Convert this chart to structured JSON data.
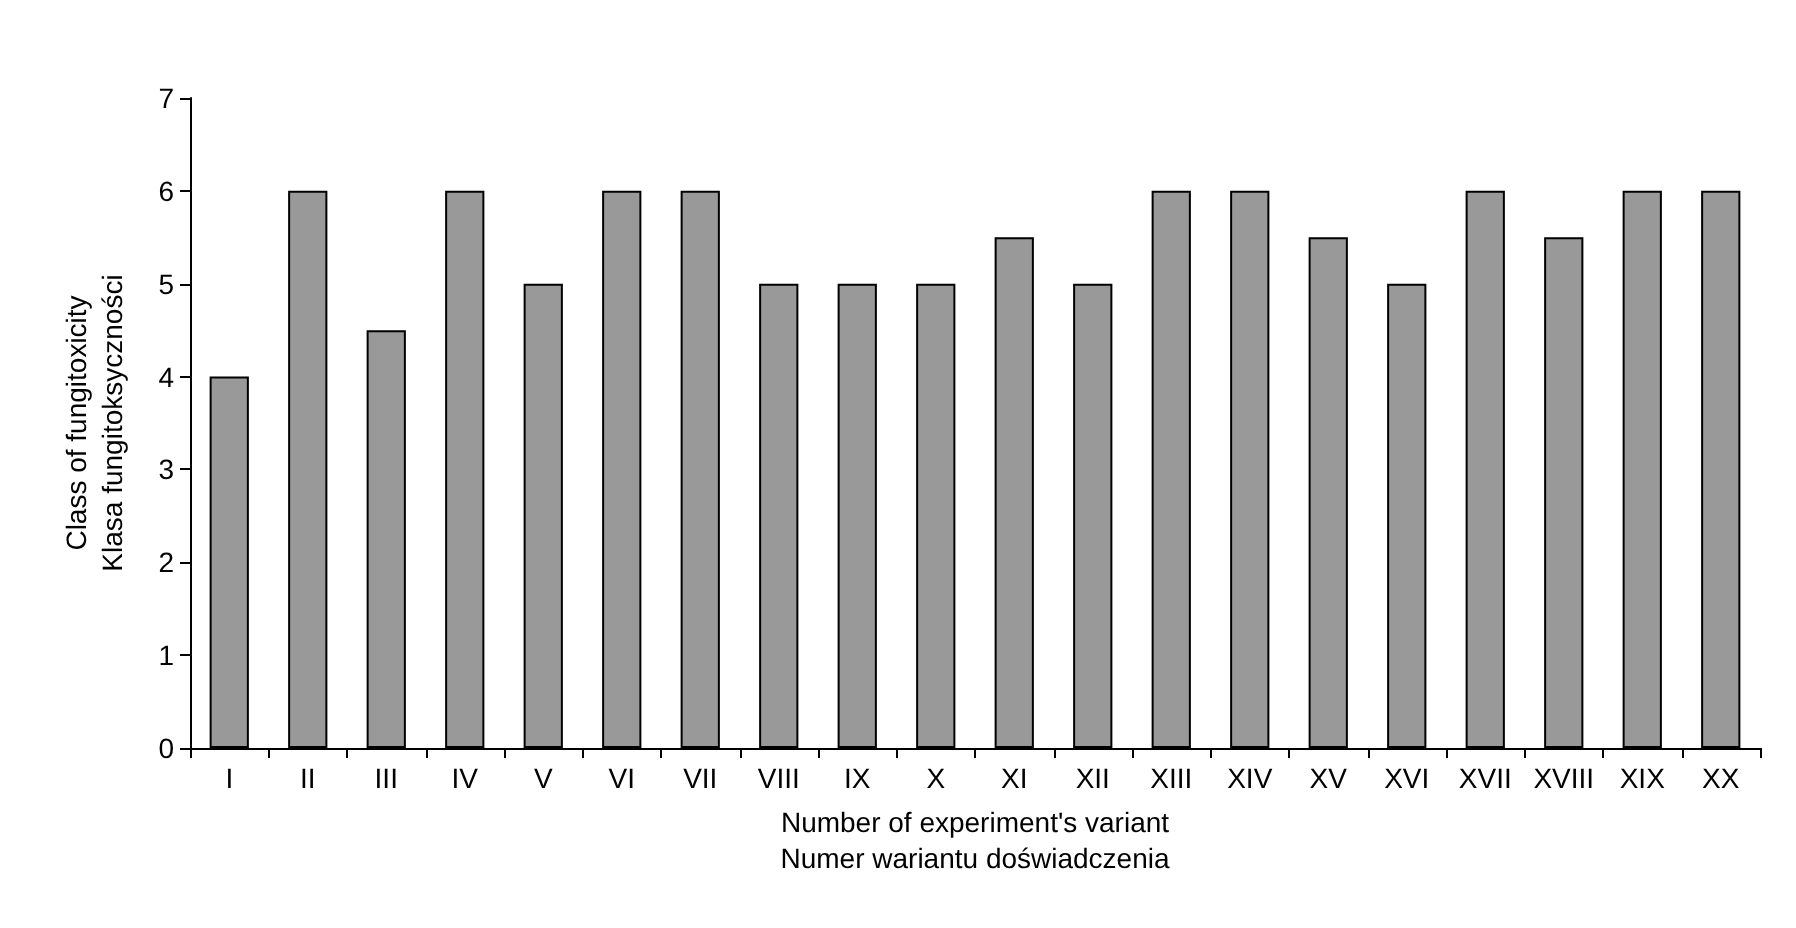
{
  "chart_data": {
    "type": "bar",
    "categories": [
      "I",
      "II",
      "III",
      "IV",
      "V",
      "VI",
      "VII",
      "VIII",
      "IX",
      "X",
      "XI",
      "XII",
      "XIII",
      "XIV",
      "XV",
      "XVI",
      "XVII",
      "XVIII",
      "XIX",
      "XX"
    ],
    "values": [
      4,
      6,
      4.5,
      6,
      5,
      6,
      6,
      5,
      5,
      5,
      5.5,
      5,
      6,
      6,
      5.5,
      5,
      6,
      5.5,
      6,
      6
    ],
    "color": "#999999",
    "ylim": [
      0,
      7
    ],
    "yticks": [
      0,
      1,
      2,
      3,
      4,
      5,
      6,
      7
    ],
    "xlabel": "Number of experiment's variant\nNumer wariantu doświadczenia",
    "ylabel": "Class of fungitoxicity\nKlasa fungitoksyczności",
    "grid": false
  }
}
